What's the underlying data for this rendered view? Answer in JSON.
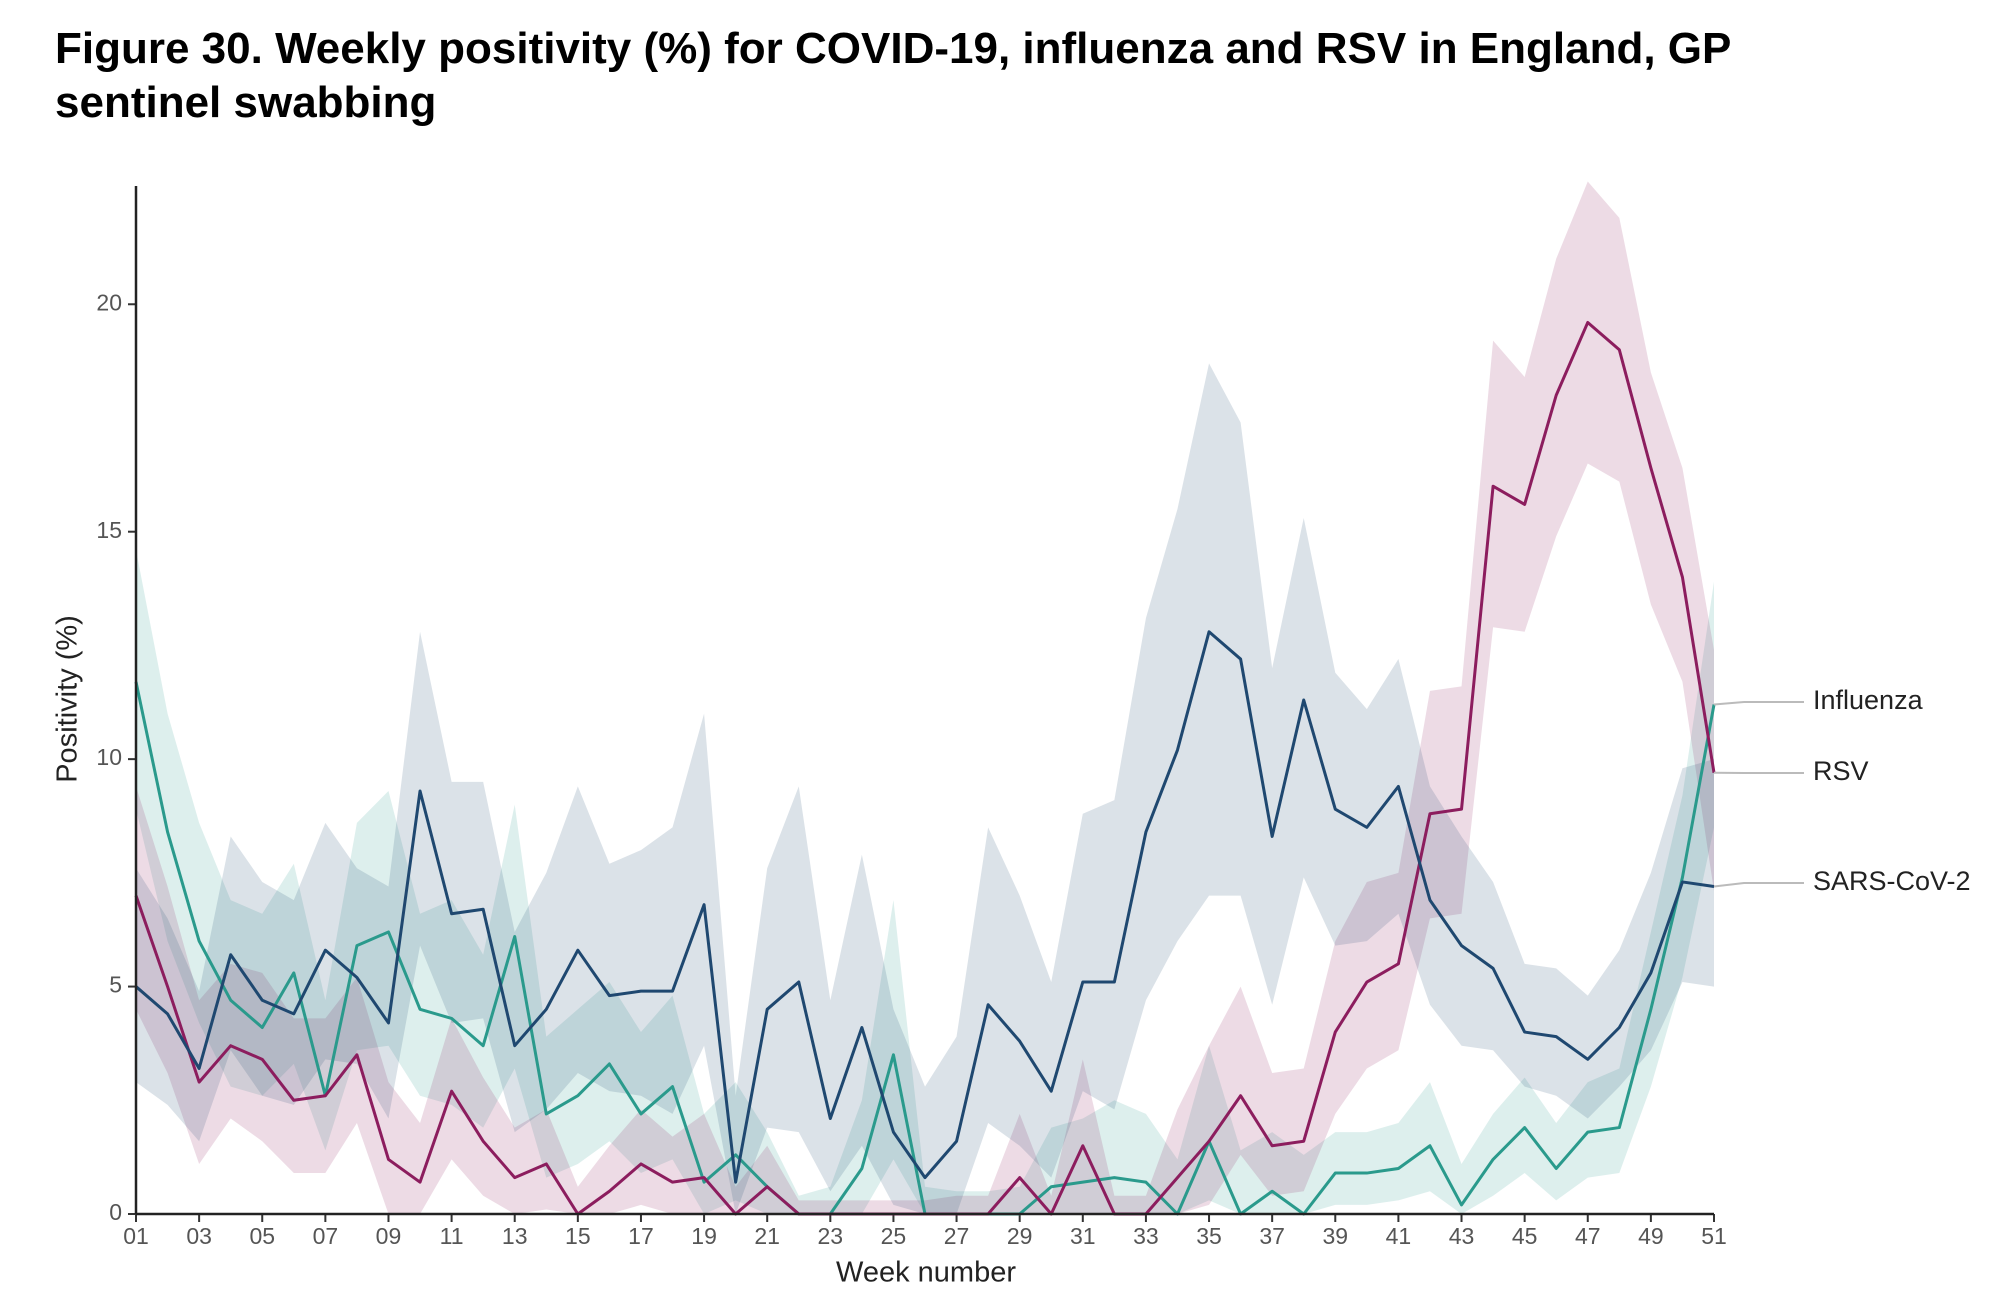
{
  "chart_data": {
    "type": "line",
    "title": "Figure 30. Weekly positivity (%) for COVID-19, influenza and RSV in England, GP sentinel swabbing",
    "xlabel": "Week number",
    "ylabel": "Positivity (%)",
    "x": [
      1,
      2,
      3,
      4,
      5,
      6,
      7,
      8,
      9,
      10,
      11,
      12,
      13,
      14,
      15,
      16,
      17,
      18,
      19,
      20,
      21,
      22,
      23,
      24,
      25,
      26,
      27,
      28,
      29,
      30,
      31,
      32,
      33,
      34,
      35,
      36,
      37,
      38,
      39,
      40,
      41,
      42,
      43,
      44,
      45,
      46,
      47,
      48,
      49,
      50,
      51
    ],
    "xlim": [
      1,
      51
    ],
    "xticks": [
      {
        "value": 1,
        "label": "01"
      },
      {
        "value": 3,
        "label": "03"
      },
      {
        "value": 5,
        "label": "05"
      },
      {
        "value": 7,
        "label": "07"
      },
      {
        "value": 9,
        "label": "09"
      },
      11,
      13,
      15,
      17,
      19,
      21,
      23,
      25,
      27,
      29,
      31,
      33,
      35,
      37,
      39,
      41,
      43,
      45,
      47,
      49,
      51
    ],
    "ylim": [
      0,
      22.6
    ],
    "yticks": [
      0,
      5,
      10,
      15,
      20
    ],
    "grid": false,
    "series": [
      {
        "name": "Influenza",
        "color": "#2a9a8c",
        "values": [
          11.7,
          8.4,
          6.0,
          4.7,
          4.1,
          5.3,
          2.6,
          5.9,
          6.2,
          4.5,
          4.3,
          3.7,
          6.1,
          2.2,
          2.6,
          3.3,
          2.2,
          2.8,
          0.7,
          1.3,
          0.6,
          0,
          0,
          1.0,
          3.5,
          0,
          0,
          0,
          0,
          0.6,
          0.7,
          0.8,
          0.7,
          0,
          1.6,
          0,
          0.5,
          0,
          0.9,
          0.9,
          1.0,
          1.5,
          0.2,
          1.2,
          1.9,
          1.0,
          1.8,
          1.9,
          4.5,
          7.4,
          11.2
        ],
        "lower": [
          8.9,
          6.0,
          4.2,
          2.8,
          2.6,
          3.3,
          1.4,
          3.6,
          3.7,
          2.6,
          2.4,
          1.9,
          3.2,
          0.8,
          1.1,
          1.6,
          0.9,
          1.2,
          0,
          0.3,
          0,
          0,
          0,
          0,
          1.2,
          0,
          0,
          0,
          0,
          0,
          0,
          0,
          0,
          0,
          0.3,
          0,
          0,
          0,
          0.2,
          0.2,
          0.3,
          0.5,
          0,
          0.4,
          0.9,
          0.3,
          0.8,
          0.9,
          2.8,
          5.2,
          8.5
        ],
        "upper": [
          14.6,
          11.0,
          8.6,
          6.9,
          6.6,
          7.7,
          4.7,
          8.6,
          9.3,
          6.6,
          6.9,
          5.7,
          9.0,
          3.9,
          4.5,
          5.1,
          4.0,
          4.8,
          2.2,
          2.9,
          1.8,
          0.4,
          0.6,
          2.5,
          6.9,
          0.6,
          0.5,
          0.5,
          0.6,
          1.9,
          2.1,
          2.5,
          2.2,
          1.2,
          3.7,
          1.4,
          1.8,
          1.3,
          1.8,
          1.8,
          2.0,
          2.9,
          1.1,
          2.2,
          3.0,
          2.0,
          2.9,
          3.2,
          6.2,
          9.2,
          13.9
        ]
      },
      {
        "name": "RSV",
        "color": "#8c1d5e",
        "values": [
          7.0,
          5.0,
          2.9,
          3.7,
          3.4,
          2.5,
          2.6,
          3.5,
          1.2,
          0.7,
          2.7,
          1.6,
          0.8,
          1.1,
          0,
          0.5,
          1.1,
          0.7,
          0.8,
          0,
          0.6,
          0,
          0,
          0,
          0,
          0,
          0,
          0,
          0.8,
          0,
          1.5,
          0,
          0,
          0.8,
          1.6,
          2.6,
          1.5,
          1.6,
          4.0,
          5.1,
          5.5,
          8.8,
          8.9,
          16.0,
          15.6,
          18.0,
          19.6,
          19.0,
          16.4,
          14.0,
          9.7
        ],
        "lower": [
          4.5,
          3.1,
          1.1,
          2.1,
          1.6,
          0.9,
          0.9,
          2.0,
          0,
          0,
          1.2,
          0.4,
          0,
          0.1,
          0,
          0,
          0.2,
          0,
          0,
          0,
          0,
          0,
          0,
          0,
          0,
          0,
          0,
          0,
          0,
          0,
          0,
          0,
          0,
          0,
          0.2,
          1.3,
          0.4,
          0.5,
          2.2,
          3.2,
          3.6,
          6.5,
          6.6,
          12.9,
          12.8,
          14.9,
          16.5,
          16.1,
          13.4,
          11.7,
          7.1
        ],
        "upper": [
          9.4,
          7.2,
          4.7,
          5.5,
          5.3,
          4.3,
          4.3,
          5.2,
          2.9,
          2.0,
          4.3,
          3.0,
          1.9,
          2.3,
          0.6,
          1.5,
          2.3,
          1.7,
          2.2,
          0.6,
          1.5,
          0.3,
          0.3,
          0.3,
          0.3,
          0.3,
          0.4,
          0.4,
          2.2,
          0.4,
          3.4,
          0.4,
          0.4,
          2.3,
          3.7,
          5.0,
          3.1,
          3.2,
          6.0,
          7.3,
          7.5,
          11.5,
          11.6,
          19.2,
          18.4,
          21.0,
          22.7,
          21.9,
          18.5,
          16.4,
          12.4
        ]
      },
      {
        "name": "SARS-CoV-2",
        "color": "#1f4870",
        "values": [
          5.0,
          4.4,
          3.2,
          5.7,
          4.7,
          4.4,
          5.8,
          5.2,
          4.2,
          9.3,
          6.6,
          6.7,
          3.7,
          4.5,
          5.8,
          4.8,
          4.9,
          4.9,
          6.8,
          0.7,
          4.5,
          5.1,
          2.1,
          4.1,
          1.8,
          0.8,
          1.6,
          4.6,
          3.8,
          2.7,
          5.1,
          5.1,
          8.4,
          10.2,
          12.8,
          12.2,
          8.3,
          11.3,
          8.9,
          8.5,
          9.4,
          6.9,
          5.9,
          5.4,
          4.0,
          3.9,
          3.4,
          4.1,
          5.3,
          7.3,
          7.2
        ],
        "lower": [
          2.9,
          2.4,
          1.6,
          3.6,
          2.6,
          2.4,
          3.4,
          3.3,
          2.1,
          5.9,
          4.2,
          4.3,
          1.8,
          2.3,
          3.1,
          2.7,
          2.6,
          2.2,
          3.7,
          0,
          1.9,
          1.8,
          0.5,
          1.5,
          0.2,
          0,
          0,
          2.0,
          1.5,
          0.8,
          2.7,
          2.3,
          4.7,
          6.0,
          7.0,
          7.0,
          4.6,
          7.4,
          5.9,
          6.0,
          6.6,
          4.6,
          3.7,
          3.6,
          2.8,
          2.6,
          2.1,
          2.8,
          3.6,
          5.1,
          5.0
        ],
        "upper": [
          7.6,
          6.5,
          4.9,
          8.3,
          7.3,
          6.9,
          8.6,
          7.6,
          7.2,
          12.8,
          9.5,
          9.5,
          6.2,
          7.5,
          9.4,
          7.7,
          8.0,
          8.5,
          11.0,
          2.6,
          7.6,
          9.4,
          4.7,
          7.9,
          4.5,
          2.8,
          3.9,
          8.5,
          7.0,
          5.1,
          8.8,
          9.1,
          13.1,
          15.5,
          18.7,
          17.4,
          12.0,
          15.3,
          11.9,
          11.1,
          12.2,
          9.4,
          8.3,
          7.3,
          5.5,
          5.4,
          4.8,
          5.8,
          7.5,
          9.8,
          10.0
        ]
      }
    ]
  }
}
